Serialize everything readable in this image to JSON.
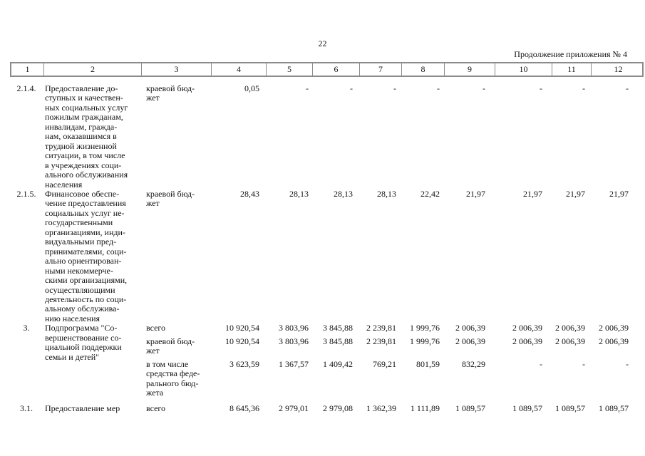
{
  "page": {
    "number": "22",
    "continuation": "Продолжение приложения № 4"
  },
  "table": {
    "header_cols": [
      "1",
      "2",
      "3",
      "4",
      "5",
      "6",
      "7",
      "8",
      "9",
      "10",
      "11",
      "12"
    ],
    "rows": [
      {
        "num": "2.1.4.",
        "name": "Предоставление до-\nступных и качествен-\nных социальных услуг\nпожилым гражданам,\nинвалидам, гражда-\nнам, оказавшимся в\nтрудной жизненной\nситуации, в том числе\nв учреждениях соци-\nального обслуживания\nнаселения",
        "source": "краевой бюд-\nжет",
        "values": [
          "0,05",
          "-",
          "-",
          "-",
          "-",
          "-",
          "-",
          "-",
          "-"
        ]
      },
      {
        "num": "2.1.5.",
        "name": "Финансовое обеспе-\nчение предоставления\nсоциальных услуг не-\nгосударственными\nорганизациями, инди-\nвидуальными пред-\nпринимателями, соци-\nально ориентирован-\nными некоммерче-\nскими организациями,\nосуществляющими\nдеятельность по соци-\nальному обслужива-\nнию населения",
        "source": "краевой бюд-\nжет",
        "values": [
          "28,43",
          "28,13",
          "28,13",
          "28,13",
          "22,42",
          "21,97",
          "21,97",
          "21,97",
          "21,97"
        ]
      },
      {
        "num": "3.",
        "name": "Подпрограмма \"Со-\nвершенствование со-\nциальной поддержки\nсемьи и детей\"",
        "subrows": [
          {
            "source": "всего",
            "values": [
              "10 920,54",
              "3 803,96",
              "3 845,88",
              "2 239,81",
              "1 999,76",
              "2 006,39",
              "2 006,39",
              "2 006,39",
              "2 006,39"
            ]
          },
          {
            "source": "краевой бюд-\nжет",
            "values": [
              "10 920,54",
              "3 803,96",
              "3 845,88",
              "2 239,81",
              "1 999,76",
              "2 006,39",
              "2 006,39",
              "2 006,39",
              "2 006,39"
            ]
          },
          {
            "source": "в том числе\nсредства феде-\nрального бюд-\nжета",
            "values": [
              "3 623,59",
              "1 367,57",
              "1 409,42",
              "769,21",
              "801,59",
              "832,29",
              "-",
              "-",
              "-"
            ]
          }
        ]
      },
      {
        "num": "3.1.",
        "name": "Предоставление мер",
        "source": "всего",
        "values": [
          "8 645,36",
          "2 979,01",
          "2 979,08",
          "1 362,39",
          "1 111,89",
          "1 089,57",
          "1 089,57",
          "1 089,57",
          "1 089,57"
        ]
      }
    ]
  }
}
